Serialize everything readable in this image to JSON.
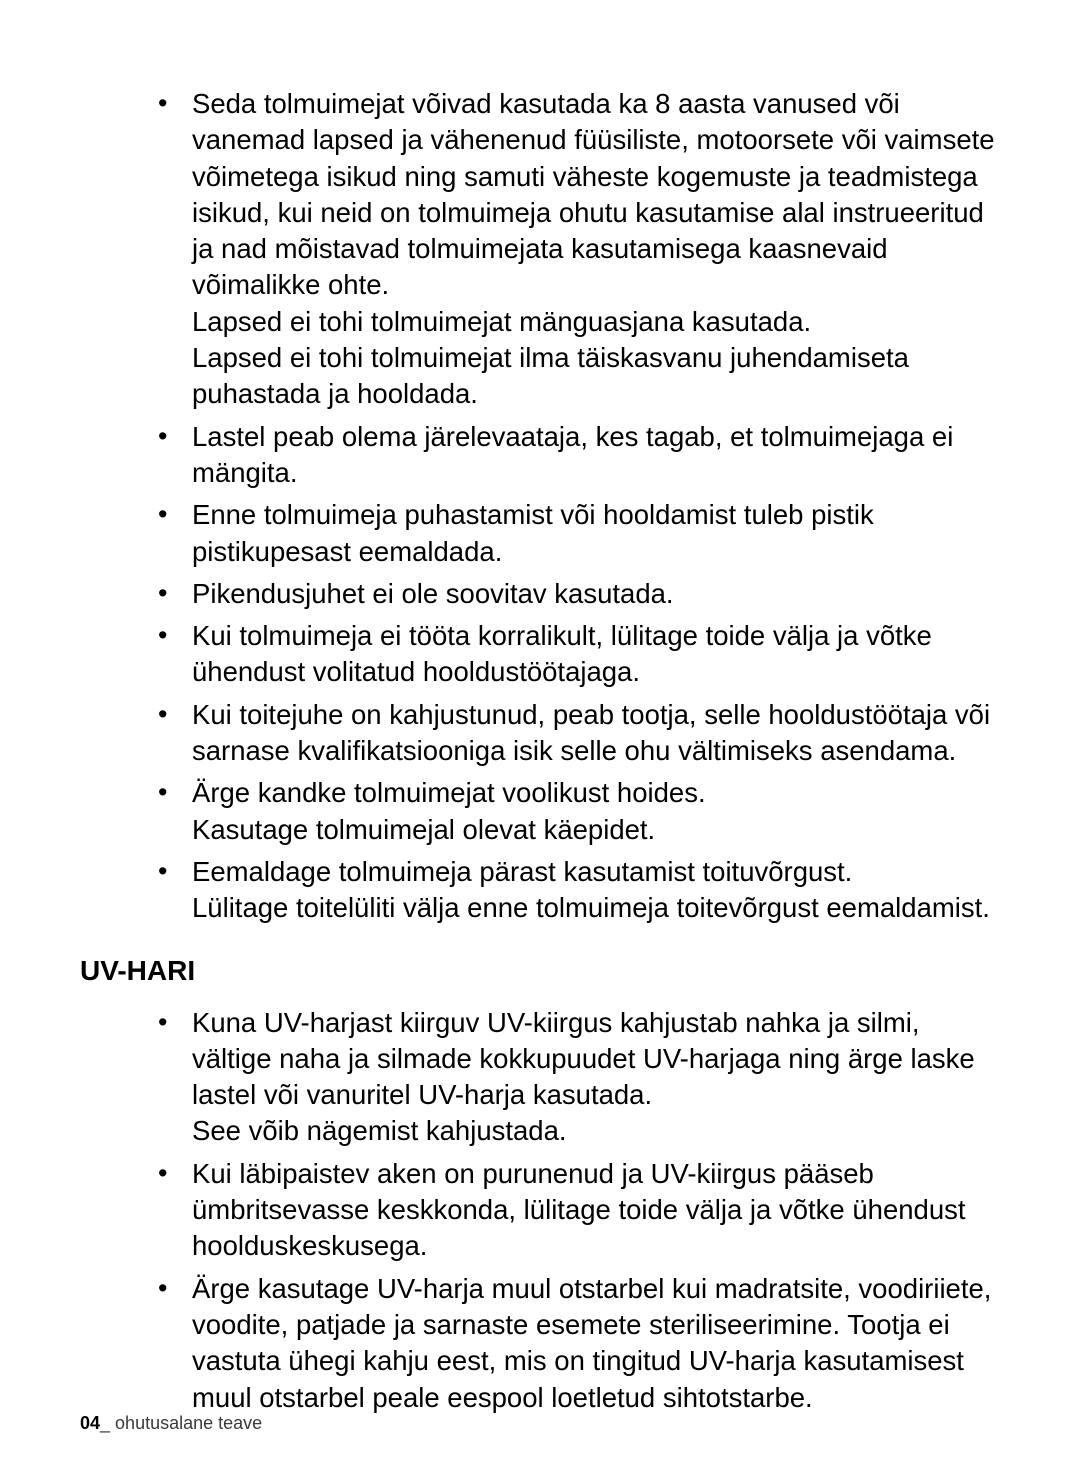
{
  "list1": {
    "items": [
      "Seda tolmuimejat võivad kasutada ka 8 aasta vanused või vanemad lapsed ja vähenenud füüsiliste, motoorsete või vaimsete võimetega isikud ning samuti väheste kogemuste ja teadmistega isikud, kui neid on tolmuimeja ohutu kasutamise alal instrueeritud ja nad mõistavad tolmuimejata kasutamisega kaasnevaid võimalikke ohte.\nLapsed ei tohi tolmuimejat mänguasjana kasutada.\nLapsed ei tohi tolmuimejat ilma täiskasvanu juhendamiseta puhastada ja hooldada.",
      "Lastel peab olema järelevaataja, kes tagab, et tolmuimejaga ei mängita.",
      "Enne tolmuimeja puhastamist või hooldamist tuleb pistik pistikupesast eemaldada.",
      "Pikendusjuhet ei ole soovitav kasutada.",
      "Kui tolmuimeja ei tööta korralikult, lülitage toide välja ja võtke ühendust volitatud hooldustöötajaga.",
      "Kui toitejuhe on kahjustunud, peab tootja, selle hooldustöötaja või sarnase kvalifikatsiooniga isik selle ohu vältimiseks asendama.",
      "Ärge kandke tolmuimejat voolikust hoides.\nKasutage tolmuimejal olevat käepidet.",
      "Eemaldage tolmuimeja pärast kasutamist toituvõrgust.\nLülitage toitelüliti välja enne tolmuimeja toitevõrgust eemaldamist."
    ]
  },
  "heading": "UV-HARI",
  "list2": {
    "items": [
      "Kuna UV-harjast kiirguv UV-kiirgus kahjustab nahka ja silmi, vältige naha ja silmade kokkupuudet UV-harjaga ning ärge laske lastel või vanuritel UV-harja kasutada.\nSee võib nägemist kahjustada.",
      "Kui läbipaistev aken on purunenud ja UV-kiirgus pääseb ümbritsevasse keskkonda, lülitage toide välja ja võtke ühendust hoolduskeskusega.",
      "Ärge kasutage UV-harja muul otstarbel kui madratsite, voodiriiete, voodite, patjade ja sarnaste esemete steriliseerimine. Tootja ei vastuta ühegi kahju eest, mis on tingitud UV-harja kasutamisest muul otstarbel peale eespool loetletud sihtotstarbe."
    ]
  },
  "footer": {
    "page": "04",
    "section": "_ ohutusalane teave"
  }
}
